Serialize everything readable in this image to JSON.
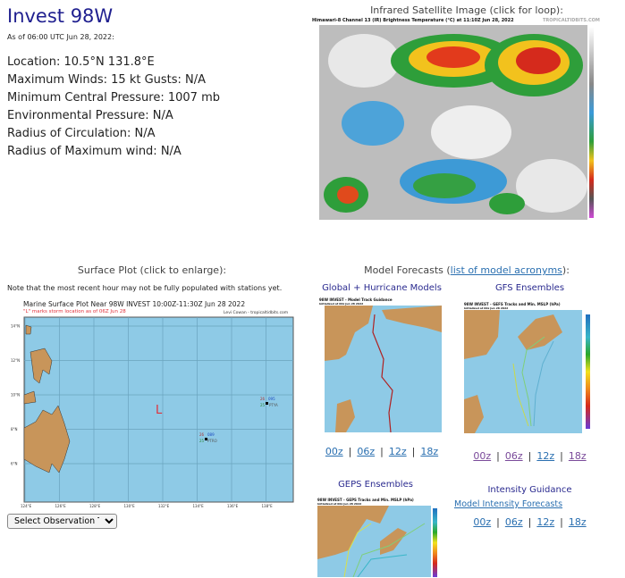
{
  "storm": {
    "title": "Invest 98W",
    "as_of": "As of 06:00 UTC Jun 28, 2022:",
    "lines": [
      "Location: 10.5°N 131.8°E",
      "Maximum Winds: 15 kt  Gusts: N/A",
      "Minimum Central Pressure: 1007 mb",
      "Environmental Pressure: N/A",
      "Radius of Circulation: N/A",
      "Radius of Maximum wind: N/A"
    ]
  },
  "satellite": {
    "heading": "Infrared Satellite Image (click for loop):",
    "image_title": "Himawari-8 Channel 13 (IR) Brightness Temperature (°C) at 11:10Z Jun 28, 2022",
    "credit": "TROPICALTIDBITS.COM"
  },
  "surface": {
    "heading": "Surface Plot (click to enlarge):",
    "note": "Note that the most recent hour may not be fully populated with stations yet.",
    "image_title": "Marine Surface Plot Near 98W INVEST 10:00Z-11:30Z Jun 28 2022",
    "image_subtitle": "\"L\" marks storm location as of 06Z Jun 28",
    "credit": "Levi Cowan - tropicaltidbits.com",
    "storm_marker": "L",
    "lat_labels": [
      "14°N",
      "12°N",
      "10°N",
      "8°N",
      "6°N"
    ],
    "lon_labels": [
      "124°E",
      "126°E",
      "128°E",
      "130°E",
      "132°E",
      "134°E",
      "136°E",
      "138°E"
    ],
    "stations": [
      {
        "id": "PTYA",
        "temp": "26",
        "dew": "25",
        "pres": "095"
      },
      {
        "id": "PTRO",
        "temp": "26",
        "dew": "25",
        "pres": "089"
      }
    ],
    "select_label": "Select Observation Time..."
  },
  "models": {
    "heading_prefix": "Model Forecasts (",
    "heading_link": "list of model acronyms",
    "heading_suffix": "):",
    "global": {
      "label": "Global + Hurricane Models",
      "image_title": "98W INVEST - Model Track Guidance",
      "image_sub": "Initialized at 00z Jun 28 2022"
    },
    "gfs": {
      "label": "GFS Ensembles",
      "image_title": "98W INVEST - GEFS Tracks and Min. MSLP (hPa)",
      "image_sub": "Initialized at 00z Jun 28 2022"
    },
    "geps": {
      "label": "GEPS Ensembles",
      "image_title": "98W INVEST - GEPS Tracks and Min. MSLP (hPa)",
      "image_sub": "Initialized at 00z Jun 28 2022"
    },
    "intensity": {
      "label": "Intensity Guidance",
      "link": "Model Intensity Forecasts"
    },
    "runs": [
      "00z",
      "06z",
      "12z",
      "18z"
    ],
    "separator": "|"
  },
  "colors": {
    "title": "#1f1f8f",
    "link": "#2a6fb0",
    "visited": "#7a4a9a",
    "ocean": "#8ecae6",
    "land": "#c8955a",
    "storm_marker": "#e0303a"
  }
}
